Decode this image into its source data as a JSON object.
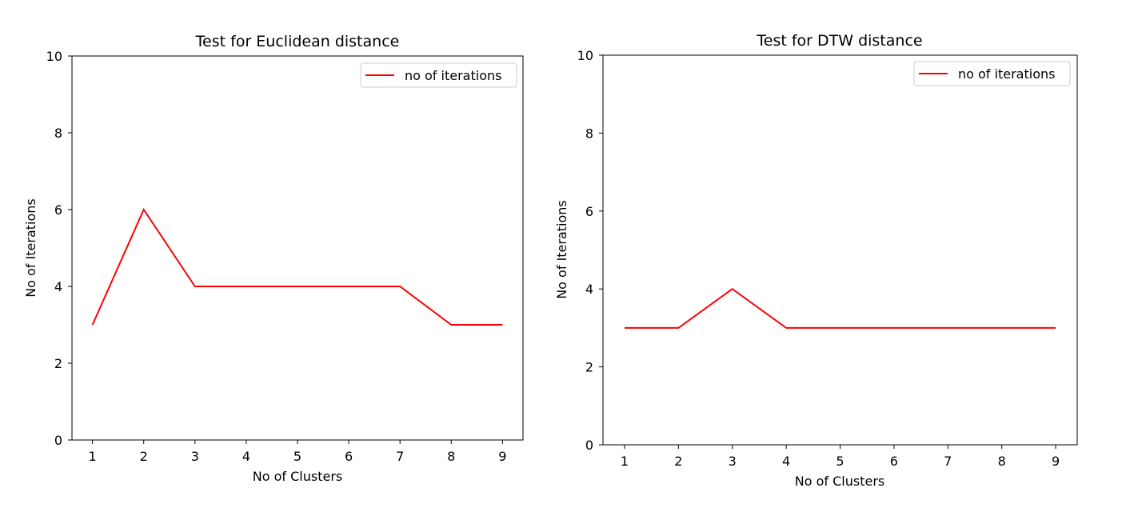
{
  "chart_data": [
    {
      "type": "line",
      "title": "Test for Euclidean distance",
      "xlabel": "No of Clusters",
      "ylabel": "No of Iterations",
      "x": [
        1,
        2,
        3,
        4,
        5,
        6,
        7,
        8,
        9
      ],
      "xticks": [
        "1",
        "2",
        "3",
        "4",
        "5",
        "6",
        "7",
        "8",
        "9"
      ],
      "yticks": [
        "0",
        "2",
        "4",
        "6",
        "8",
        "10"
      ],
      "ylim": [
        0,
        10
      ],
      "xlim": [
        0.6,
        9.4
      ],
      "grid": false,
      "legend_position": "top-right",
      "series": [
        {
          "name": "no of iterations",
          "color": "#ff0000",
          "values": [
            3,
            6,
            4,
            4,
            4,
            4,
            4,
            3,
            3
          ]
        }
      ]
    },
    {
      "type": "line",
      "title": "Test for DTW distance",
      "xlabel": "No of Clusters",
      "ylabel": "No of Iterations",
      "x": [
        1,
        2,
        3,
        4,
        5,
        6,
        7,
        8,
        9
      ],
      "xticks": [
        "1",
        "2",
        "3",
        "4",
        "5",
        "6",
        "7",
        "8",
        "9"
      ],
      "yticks": [
        "0",
        "2",
        "4",
        "6",
        "8",
        "10"
      ],
      "ylim": [
        0,
        10
      ],
      "xlim": [
        0.6,
        9.4
      ],
      "grid": false,
      "legend_position": "top-right",
      "series": [
        {
          "name": "no of iterations",
          "color": "#ff0000",
          "values": [
            3,
            3,
            4,
            3,
            3,
            3,
            3,
            3,
            3
          ]
        }
      ]
    }
  ]
}
